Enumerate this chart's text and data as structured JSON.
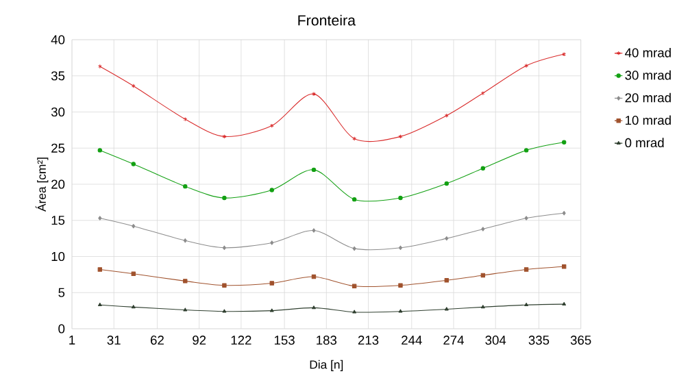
{
  "chart_data": {
    "type": "line",
    "title": "Fronteira",
    "xlabel": "Dia [n]",
    "ylabel": "Área [cm²]",
    "x": [
      21,
      45,
      82,
      110,
      144,
      174,
      203,
      236,
      269,
      295,
      326,
      353
    ],
    "xlim": [
      1,
      365
    ],
    "xticks": [
      1,
      31,
      62,
      92,
      122,
      153,
      183,
      213,
      244,
      274,
      304,
      335,
      365
    ],
    "ylim": [
      0,
      40
    ],
    "yticks": [
      0,
      5,
      10,
      15,
      20,
      25,
      30,
      35,
      40
    ],
    "grid": true,
    "legend": "right",
    "line_style": "solid",
    "series": [
      {
        "name": "40 mrad",
        "color": "#d92b2b",
        "marker": "cross",
        "values": [
          36.3,
          33.6,
          29.0,
          26.6,
          28.1,
          32.5,
          26.3,
          26.6,
          29.5,
          32.6,
          36.4,
          38.0
        ]
      },
      {
        "name": "30 mrad",
        "color": "#12a012",
        "marker": "circle",
        "values": [
          24.7,
          22.8,
          19.7,
          18.1,
          19.2,
          22.0,
          17.9,
          18.1,
          20.1,
          22.2,
          24.7,
          25.8
        ]
      },
      {
        "name": "20 mrad",
        "color": "#8c8c8c",
        "marker": "diamond",
        "values": [
          15.3,
          14.2,
          12.2,
          11.2,
          11.9,
          13.6,
          11.1,
          11.2,
          12.5,
          13.8,
          15.3,
          16.0
        ]
      },
      {
        "name": "10 mrad",
        "color": "#a0522d",
        "marker": "square",
        "values": [
          8.2,
          7.6,
          6.6,
          6.0,
          6.3,
          7.2,
          5.9,
          6.0,
          6.7,
          7.4,
          8.2,
          8.6
        ]
      },
      {
        "name": "0 mrad",
        "color": "#2f3f2f",
        "marker": "triangle",
        "values": [
          3.3,
          3.0,
          2.6,
          2.4,
          2.5,
          2.9,
          2.3,
          2.4,
          2.7,
          3.0,
          3.3,
          3.4
        ]
      }
    ]
  }
}
